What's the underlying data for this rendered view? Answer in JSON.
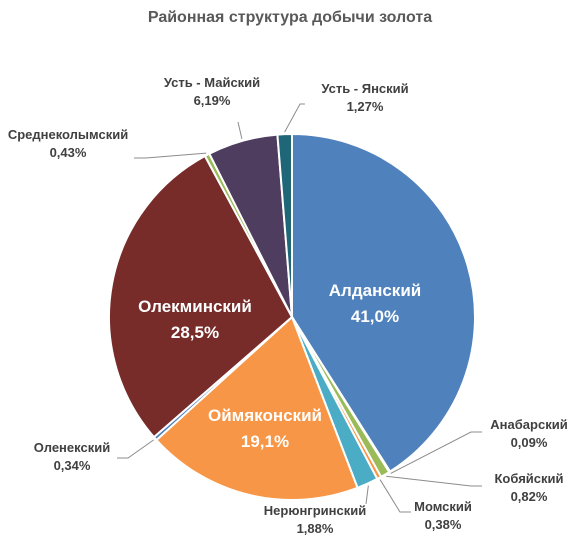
{
  "chart_data": {
    "type": "pie",
    "title": "Районная структура добычи золота",
    "slices": [
      {
        "name": "Алданский",
        "value": 41.0,
        "label": "41,0%",
        "color": "#4f81bd",
        "label_position": "inside"
      },
      {
        "name": "Анабарский",
        "value": 0.09,
        "label": "0,09%",
        "color": "#8064a2",
        "label_position": "outside"
      },
      {
        "name": "Кобяйский",
        "value": 0.82,
        "label": "0,82%",
        "color": "#9bbb59",
        "label_position": "outside"
      },
      {
        "name": "Момский",
        "value": 0.38,
        "label": "0,38%",
        "color": "#f79646",
        "label_position": "outside"
      },
      {
        "name": "Нерюнгринский",
        "value": 1.88,
        "label": "1,88%",
        "color": "#4bacc6",
        "label_position": "outside"
      },
      {
        "name": "Оймяконский",
        "value": 19.1,
        "label": "19,1%",
        "color": "#f79646",
        "label_position": "inside"
      },
      {
        "name": "Оленекский",
        "value": 0.34,
        "label": "0,34%",
        "color": "#4f81bd",
        "label_position": "outside"
      },
      {
        "name": "Олекминский",
        "value": 28.5,
        "label": "28,5%",
        "color": "#772c2a",
        "label_position": "inside"
      },
      {
        "name": "Среднеколымский",
        "value": 0.43,
        "label": "0,43%",
        "color": "#9bbb59",
        "label_position": "outside"
      },
      {
        "name": "Усть - Майский",
        "value": 6.19,
        "label": "6,19%",
        "color": "#4f3d5f",
        "label_position": "outside"
      },
      {
        "name": "Усть - Янский",
        "value": 1.27,
        "label": "1,27%",
        "color": "#1f6678",
        "label_position": "outside"
      }
    ],
    "start": "12 o'clock",
    "direction": "clockwise",
    "legend": "none"
  }
}
